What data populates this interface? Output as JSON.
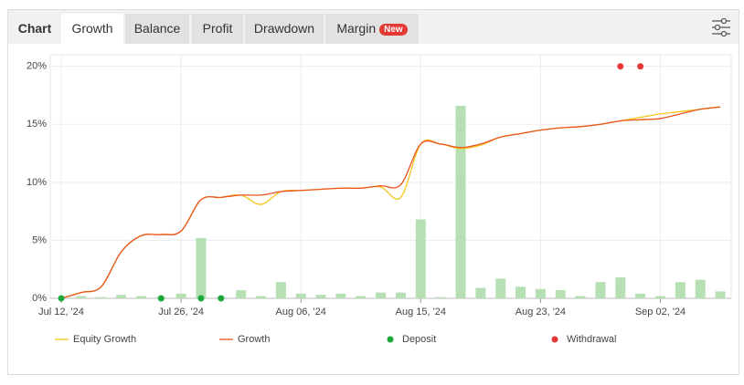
{
  "tabs": [
    "Chart",
    "Growth",
    "Balance",
    "Profit",
    "Drawdown",
    "Margin"
  ],
  "badge": "New",
  "chart_data": {
    "type": "line",
    "categories": [
      "Jul 12, '24",
      null,
      null,
      null,
      null,
      null,
      "Jul 26, '24",
      null,
      null,
      null,
      null,
      null,
      "Aug 06, '24",
      null,
      null,
      null,
      null,
      null,
      "Aug 15, '24",
      null,
      null,
      null,
      null,
      null,
      "Aug 23, '24",
      null,
      null,
      null,
      null,
      null,
      "Sep 02, '24",
      null,
      null,
      null
    ],
    "ylim": [
      0,
      21
    ],
    "yticks": [
      {
        "value": 0,
        "label": "0%"
      },
      {
        "value": 5,
        "label": "5%"
      },
      {
        "value": 10,
        "label": "10%"
      },
      {
        "value": 15,
        "label": "15%"
      },
      {
        "value": 20,
        "label": "20%"
      }
    ],
    "grid": true,
    "bars": {
      "color": "#b6e0b4",
      "values": [
        0,
        0.2,
        0.1,
        0.3,
        0.2,
        0.1,
        0.4,
        5.2,
        0.1,
        0.7,
        0.2,
        1.4,
        0.4,
        0.3,
        0.4,
        0.2,
        0.5,
        0.5,
        6.8,
        0.1,
        16.6,
        0.9,
        1.7,
        1.0,
        0.8,
        0.7,
        0.2,
        1.4,
        1.8,
        0.4,
        0.2,
        1.4,
        1.6,
        0.6
      ]
    },
    "series": [
      {
        "name": "Equity Growth",
        "kind": "line",
        "color": "#f5c518",
        "values": [
          0,
          0.5,
          1.0,
          4.0,
          5.4,
          5.5,
          5.8,
          8.5,
          8.7,
          8.9,
          8.1,
          9.2,
          9.3,
          9.4,
          9.5,
          9.5,
          9.6,
          8.7,
          13.3,
          13.3,
          12.9,
          13.2,
          13.9,
          14.2,
          14.5,
          14.7,
          14.8,
          15.0,
          15.3,
          15.6,
          15.9,
          16.1,
          16.3,
          16.5
        ]
      },
      {
        "name": "Growth",
        "kind": "line",
        "color": "#e8531f",
        "values": [
          0,
          0.5,
          1.0,
          4.0,
          5.4,
          5.5,
          5.8,
          8.5,
          8.7,
          8.9,
          8.9,
          9.2,
          9.3,
          9.4,
          9.5,
          9.5,
          9.7,
          9.8,
          13.3,
          13.3,
          13.0,
          13.3,
          13.9,
          14.2,
          14.5,
          14.7,
          14.8,
          15.0,
          15.3,
          15.4,
          15.5,
          15.9,
          16.3,
          16.5
        ]
      },
      {
        "name": "Deposit",
        "kind": "dots",
        "color": "#1aa83a",
        "values": [
          0,
          null,
          null,
          null,
          null,
          0,
          null,
          0,
          0,
          null,
          null,
          null,
          null,
          null,
          null,
          null,
          null,
          null,
          null,
          null,
          null,
          null,
          null,
          null,
          null,
          null,
          null,
          null,
          null,
          null,
          null,
          null,
          null,
          null
        ]
      },
      {
        "name": "Withdrawal",
        "kind": "dots",
        "color": "#e53935",
        "values": [
          null,
          null,
          null,
          null,
          null,
          null,
          null,
          null,
          null,
          null,
          null,
          null,
          null,
          null,
          null,
          null,
          null,
          null,
          null,
          null,
          null,
          null,
          null,
          null,
          null,
          null,
          null,
          null,
          20,
          20,
          null,
          null,
          null,
          null
        ]
      }
    ]
  }
}
